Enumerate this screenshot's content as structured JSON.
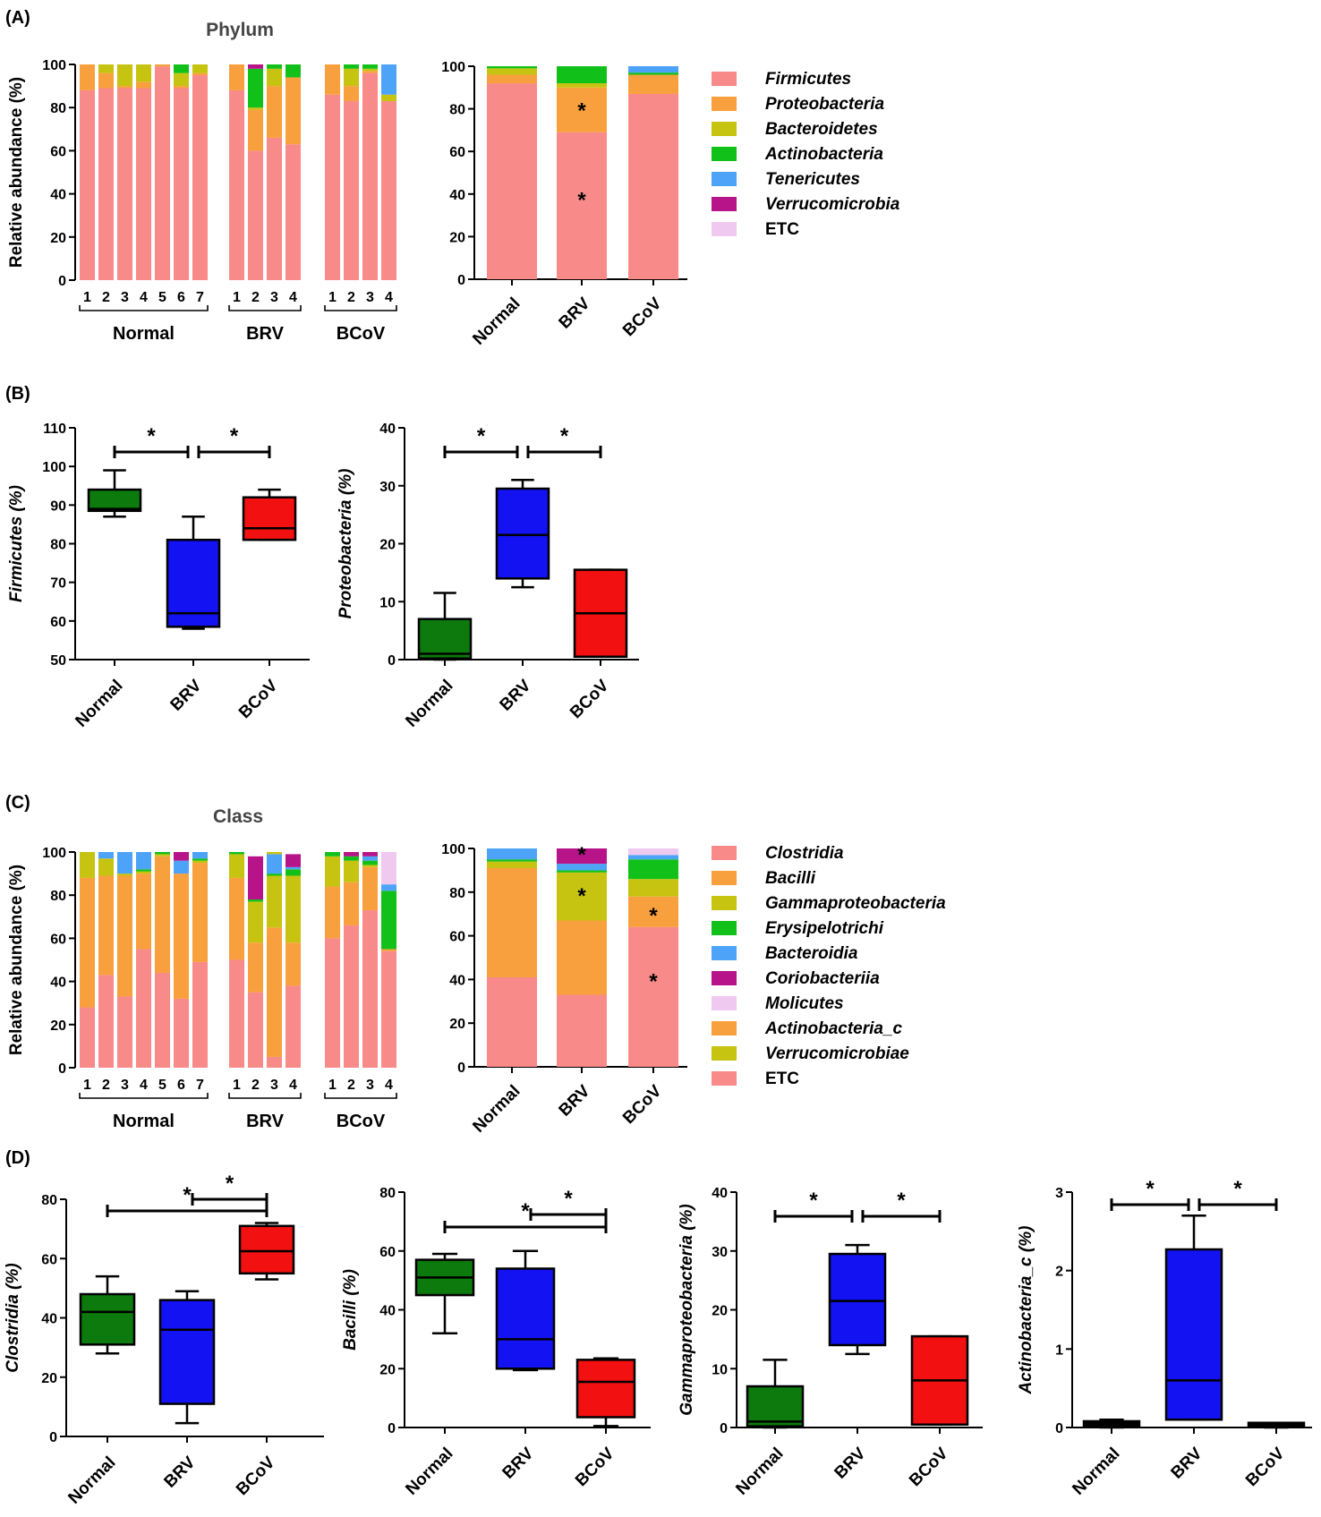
{
  "colors": {
    "palette": [
      "#f88a89",
      "#f8a03d",
      "#c7c311",
      "#11c11a",
      "#4da3f7",
      "#b7148a",
      "#efc9ef"
    ],
    "normal": "#0c7a0c",
    "brv": "#1212f2",
    "bcov": "#f21010",
    "etc_box": "#000000"
  },
  "panel_labels": {
    "a": "(A)",
    "b": "(B)",
    "c": "(C)",
    "d": "(D)"
  },
  "titles": {
    "phylum": "Phylum",
    "class": "Class"
  },
  "ylabel_abundance": "Relative abundance (%)",
  "group_labels": [
    "Normal",
    "BRV",
    "BCoV"
  ],
  "sample_labels": {
    "normal": [
      "1",
      "2",
      "3",
      "4",
      "5",
      "6",
      "7"
    ],
    "brv": [
      "1",
      "2",
      "3",
      "4"
    ],
    "bcov": [
      "1",
      "2",
      "3",
      "4"
    ]
  },
  "star": "*",
  "legend_phylum": {
    "entries": [
      "Firmicutes",
      "Proteobacteria",
      "Bacteroidetes",
      "Actinobacteria",
      "Tenericutes",
      "Verrucomicrobia",
      "ETC"
    ],
    "italic": [
      true,
      true,
      true,
      true,
      true,
      true,
      false
    ],
    "color_index": [
      0,
      1,
      2,
      3,
      4,
      5,
      6
    ]
  },
  "legend_class": {
    "entries": [
      "Clostridia",
      "Bacilli",
      "Gammaproteobacteria",
      "Erysipelotrichi",
      "Bacteroidia",
      "Coriobacteriia",
      "Molicutes",
      "Actinobacteria_c",
      "Verrucomicrobiae",
      "ETC"
    ],
    "italic": [
      true,
      true,
      true,
      true,
      true,
      true,
      true,
      true,
      true,
      false
    ],
    "color_index": [
      0,
      1,
      2,
      3,
      4,
      5,
      6,
      1,
      2,
      0
    ]
  },
  "chart_data": [
    {
      "id": "phylum_samples",
      "type": "bar",
      "stacked": true,
      "title": "Phylum",
      "ylabel": "Relative abundance (%)",
      "ylim": [
        0,
        100
      ],
      "yticks": [
        0,
        20,
        40,
        60,
        80,
        100
      ],
      "series_names": [
        "Firmicutes",
        "Proteobacteria",
        "Bacteroidetes",
        "Actinobacteria",
        "Tenericutes",
        "Verrucomicrobia",
        "ETC"
      ],
      "groups": [
        {
          "name": "Normal",
          "samples": [
            [
              88,
              12,
              0,
              0,
              0,
              0,
              0
            ],
            [
              89,
              7,
              4,
              0,
              0,
              0,
              0
            ],
            [
              89,
              1,
              10,
              0,
              0,
              0,
              0
            ],
            [
              89,
              3,
              8,
              0,
              0,
              0,
              0
            ],
            [
              99,
              1,
              0,
              0,
              0,
              0,
              0
            ],
            [
              89,
              1,
              6,
              4,
              0,
              0,
              0
            ],
            [
              95,
              1,
              4,
              0,
              0,
              0,
              0
            ]
          ]
        },
        {
          "name": "BRV",
          "samples": [
            [
              88,
              12,
              0,
              0,
              0,
              0,
              0
            ],
            [
              60,
              19,
              1,
              18,
              0,
              2,
              0
            ],
            [
              66,
              24,
              8,
              2,
              0,
              0,
              0
            ],
            [
              63,
              31,
              0,
              6,
              0,
              0,
              0
            ]
          ]
        },
        {
          "name": "BCoV",
          "samples": [
            [
              86,
              14,
              0,
              0,
              0,
              0,
              0
            ],
            [
              83,
              7,
              8,
              2,
              0,
              0,
              0
            ],
            [
              96,
              1,
              1,
              2,
              0,
              0,
              0
            ],
            [
              83,
              0,
              3,
              0,
              14,
              0,
              0
            ]
          ]
        }
      ]
    },
    {
      "id": "phylum_group",
      "type": "bar",
      "stacked": true,
      "ylim": [
        0,
        100
      ],
      "yticks": [
        0,
        20,
        40,
        60,
        80,
        100
      ],
      "categories": [
        "Normal",
        "BRV",
        "BCoV"
      ],
      "series_names": [
        "Firmicutes",
        "Proteobacteria",
        "Bacteroidetes",
        "Actinobacteria",
        "Tenericutes",
        "Verrucomicrobia",
        "ETC"
      ],
      "values": [
        [
          92,
          4,
          3,
          1,
          0,
          0,
          0
        ],
        [
          69,
          21,
          2,
          8,
          0,
          0,
          0
        ],
        [
          87,
          9,
          0,
          1,
          3,
          0,
          0
        ]
      ],
      "annotations": [
        {
          "category": "BRV",
          "value": 80,
          "text": "*"
        },
        {
          "category": "BRV",
          "value": 38,
          "text": "*"
        }
      ]
    },
    {
      "id": "firmicutes_box",
      "type": "box",
      "ylabel": "Firmicutes (%)",
      "ylim": [
        50,
        110
      ],
      "yticks": [
        50,
        60,
        70,
        80,
        90,
        100,
        110
      ],
      "categories": [
        "Normal",
        "BRV",
        "BCoV"
      ],
      "boxes": [
        {
          "min": 87,
          "q1": 88.5,
          "median": 89,
          "q3": 94,
          "max": 99
        },
        {
          "min": 58,
          "q1": 58.5,
          "median": 62,
          "q3": 81,
          "max": 87
        },
        {
          "min": 81,
          "q1": 81,
          "median": 84,
          "q3": 92,
          "max": 94
        }
      ],
      "brackets": [
        {
          "from": 0,
          "to": 1,
          "text": "*"
        },
        {
          "from": 1,
          "to": 2,
          "text": "*"
        }
      ]
    },
    {
      "id": "proteobacteria_box",
      "type": "box",
      "ylabel": "Proteobacteria (%)",
      "ylim": [
        0,
        40
      ],
      "yticks": [
        0,
        10,
        20,
        30,
        40
      ],
      "categories": [
        "Normal",
        "BRV",
        "BCoV"
      ],
      "boxes": [
        {
          "min": 0,
          "q1": 0.2,
          "median": 1,
          "q3": 7,
          "max": 11.5
        },
        {
          "min": 12.5,
          "q1": 14,
          "median": 21.5,
          "q3": 29.5,
          "max": 31
        },
        {
          "min": 0.5,
          "q1": 0.5,
          "median": 8,
          "q3": 15.5,
          "max": 15.5
        }
      ],
      "brackets": [
        {
          "from": 0,
          "to": 1,
          "text": "*"
        },
        {
          "from": 1,
          "to": 2,
          "text": "*"
        }
      ]
    },
    {
      "id": "class_samples",
      "type": "bar",
      "stacked": true,
      "title": "Class",
      "ylabel": "Relative abundance (%)",
      "ylim": [
        0,
        100
      ],
      "yticks": [
        0,
        20,
        40,
        60,
        80,
        100
      ],
      "series_names": [
        "Clostridia",
        "Bacilli",
        "Gammaproteobacteria",
        "Erysipelotrichi",
        "Bacteroidia",
        "Coriobacteriia",
        "Molicutes",
        "Actinobacteria_c",
        "Verrucomicrobiae",
        "ETC"
      ],
      "groups": [
        {
          "name": "Normal",
          "samples": [
            [
              28,
              60,
              12,
              0,
              0,
              0,
              0,
              0,
              0,
              0
            ],
            [
              43,
              46,
              8,
              0,
              3,
              0,
              0,
              0,
              0,
              0
            ],
            [
              33,
              56,
              1,
              0,
              10,
              0,
              0,
              0,
              0,
              0
            ],
            [
              55,
              35,
              1,
              1,
              8,
              0,
              0,
              0,
              0,
              0
            ],
            [
              44,
              54,
              1,
              1,
              0,
              0,
              0,
              0,
              0,
              0
            ],
            [
              32,
              58,
              0,
              0,
              6,
              4,
              0,
              0,
              0,
              0
            ],
            [
              49,
              46,
              1,
              1,
              3,
              0,
              0,
              0,
              0,
              0
            ]
          ]
        },
        {
          "name": "BRV",
          "samples": [
            [
              50,
              38,
              11,
              1,
              0,
              0,
              0,
              0,
              0,
              0
            ],
            [
              35,
              23,
              19,
              1,
              0,
              20,
              0,
              0,
              0,
              0
            ],
            [
              5,
              60,
              24,
              1,
              9,
              0,
              0,
              0,
              1,
              0
            ],
            [
              38,
              20,
              31,
              3,
              1,
              6,
              0,
              0,
              0,
              0
            ]
          ]
        },
        {
          "name": "BCoV",
          "samples": [
            [
              60,
              24,
              14,
              2,
              0,
              0,
              0,
              0,
              0,
              0
            ],
            [
              66,
              20,
              10,
              2,
              0,
              2,
              0,
              0,
              0,
              0
            ],
            [
              73,
              20,
              1,
              2,
              2,
              2,
              0,
              0,
              0,
              0
            ],
            [
              54,
              1,
              0,
              27,
              3,
              0,
              15,
              0,
              0,
              0
            ]
          ]
        }
      ]
    },
    {
      "id": "class_group",
      "type": "bar",
      "stacked": true,
      "ylim": [
        0,
        100
      ],
      "yticks": [
        0,
        20,
        40,
        60,
        80,
        100
      ],
      "categories": [
        "Normal",
        "BRV",
        "BCoV"
      ],
      "series_names": [
        "Clostridia",
        "Bacilli",
        "Gammaproteobacteria",
        "Erysipelotrichi",
        "Bacteroidia",
        "Coriobacteriia",
        "Molicutes",
        "Actinobacteria_c",
        "Verrucomicrobiae",
        "ETC"
      ],
      "values": [
        [
          41,
          50,
          3,
          1,
          5,
          0,
          0,
          0,
          0,
          0
        ],
        [
          33,
          34,
          22,
          1,
          3,
          7,
          0,
          0,
          0,
          0
        ],
        [
          64,
          14,
          8,
          9,
          2,
          0,
          3,
          0,
          0,
          0
        ]
      ],
      "annotations": [
        {
          "category": "BRV",
          "value": 98,
          "text": "*"
        },
        {
          "category": "BRV",
          "value": 79,
          "text": "*"
        },
        {
          "category": "BCoV",
          "value": 70,
          "text": "*"
        },
        {
          "category": "BCoV",
          "value": 40,
          "text": "*"
        }
      ]
    },
    {
      "id": "clostridia_box",
      "type": "box",
      "ylabel": "Clostridia (%)",
      "ylim": [
        0,
        80
      ],
      "yticks": [
        0,
        20,
        40,
        60,
        80
      ],
      "categories": [
        "Normal",
        "BRV",
        "BCoV"
      ],
      "boxes": [
        {
          "min": 28,
          "q1": 31,
          "median": 42,
          "q3": 48,
          "max": 54
        },
        {
          "min": 4.5,
          "q1": 11,
          "median": 36,
          "q3": 46,
          "max": 49
        },
        {
          "min": 53,
          "q1": 55,
          "median": 62.5,
          "q3": 71,
          "max": 72
        }
      ],
      "brackets": [
        {
          "from": 0,
          "to": 2,
          "text": "*"
        },
        {
          "from": 1,
          "to": 2,
          "text": "*"
        }
      ]
    },
    {
      "id": "bacilli_box",
      "type": "box",
      "ylabel": "Bacilli (%)",
      "ylim": [
        0,
        80
      ],
      "yticks": [
        0,
        20,
        40,
        60,
        80
      ],
      "categories": [
        "Normal",
        "BRV",
        "BCoV"
      ],
      "boxes": [
        {
          "min": 32,
          "q1": 45,
          "median": 51,
          "q3": 57,
          "max": 59
        },
        {
          "min": 19.5,
          "q1": 20,
          "median": 30,
          "q3": 54,
          "max": 60
        },
        {
          "min": 0.5,
          "q1": 3.5,
          "median": 15.5,
          "q3": 23,
          "max": 23.5
        }
      ],
      "brackets": [
        {
          "from": 0,
          "to": 2,
          "text": "*"
        },
        {
          "from": 1,
          "to": 2,
          "text": "*"
        }
      ]
    },
    {
      "id": "gammaproteobacteria_box",
      "type": "box",
      "ylabel": "Gammaproteobacteria (%)",
      "ylim": [
        0,
        40
      ],
      "yticks": [
        0,
        10,
        20,
        30,
        40
      ],
      "categories": [
        "Normal",
        "BRV",
        "BCoV"
      ],
      "boxes": [
        {
          "min": 0,
          "q1": 0.2,
          "median": 1,
          "q3": 7,
          "max": 11.5
        },
        {
          "min": 12.5,
          "q1": 14,
          "median": 21.5,
          "q3": 29.5,
          "max": 31
        },
        {
          "min": 0.5,
          "q1": 0.5,
          "median": 8,
          "q3": 15.5,
          "max": 15.5
        }
      ],
      "brackets": [
        {
          "from": 0,
          "to": 1,
          "text": "*"
        },
        {
          "from": 1,
          "to": 2,
          "text": "*"
        }
      ]
    },
    {
      "id": "actinobacteria_c_box",
      "type": "box",
      "ylabel": "Actinobacteria_c (%)",
      "ylim": [
        0,
        3
      ],
      "yticks": [
        0,
        1,
        2,
        3
      ],
      "categories": [
        "Normal",
        "BRV",
        "BCoV"
      ],
      "boxes": [
        {
          "min": 0,
          "q1": 0.02,
          "median": 0.05,
          "q3": 0.08,
          "max": 0.1,
          "color": "etc_box"
        },
        {
          "min": 0.1,
          "q1": 0.1,
          "median": 0.6,
          "q3": 2.27,
          "max": 2.7
        },
        {
          "min": 0,
          "q1": 0.02,
          "median": 0.04,
          "q3": 0.06,
          "max": 0.06,
          "color": "etc_box"
        }
      ],
      "brackets": [
        {
          "from": 0,
          "to": 1,
          "text": "*"
        },
        {
          "from": 1,
          "to": 2,
          "text": "*"
        }
      ]
    }
  ]
}
